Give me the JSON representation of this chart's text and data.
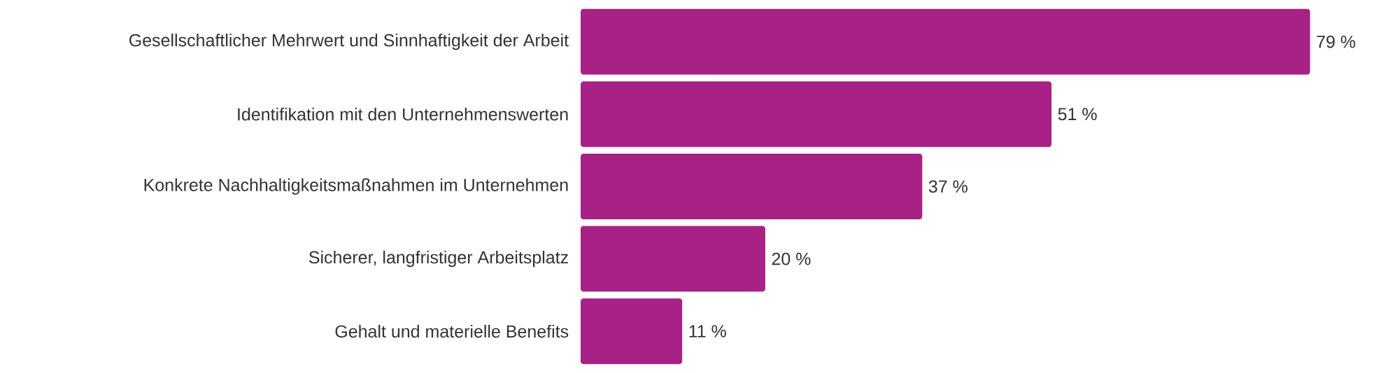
{
  "chart_data": {
    "type": "bar",
    "orientation": "horizontal",
    "categories": [
      "Gesellschaftlicher Mehrwert und Sinnhaftigkeit der Arbeit",
      "Identifikation mit den Unternehmenswerten",
      "Konkrete Nachhaltigkeitsmaßnahmen im Unternehmen",
      "Sicherer, langfristiger Arbeitsplatz",
      "Gehalt und materielle Benefits"
    ],
    "values": [
      79,
      51,
      37,
      20,
      11
    ],
    "value_labels": [
      "79 %",
      "51 %",
      "37 %",
      "20 %",
      "11 %"
    ],
    "color": "#a82185"
  }
}
